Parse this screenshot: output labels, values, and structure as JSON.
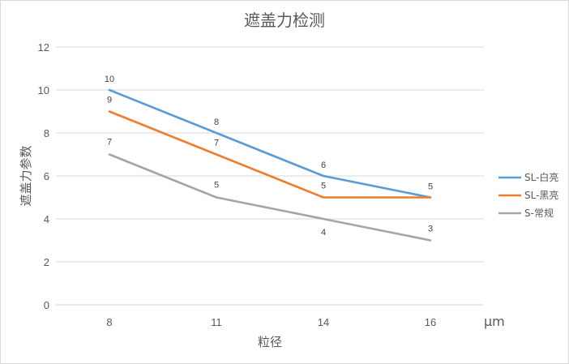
{
  "chart_data": {
    "type": "line",
    "title": "遮盖力检测",
    "xlabel": "粒径",
    "ylabel": "遮盖力参数",
    "x_unit": "μm",
    "categories": [
      "8",
      "11",
      "14",
      "16"
    ],
    "ylim": [
      0,
      12
    ],
    "yticks": [
      "0",
      "2",
      "4",
      "6",
      "8",
      "10",
      "12"
    ],
    "grid": true,
    "legend_position": "right",
    "series": [
      {
        "name": "SL-白亮",
        "color": "#5b9bd5",
        "values": [
          10,
          8,
          6,
          5
        ]
      },
      {
        "name": "SL-黑亮",
        "color": "#ed7d31",
        "values": [
          9,
          7,
          5,
          5
        ]
      },
      {
        "name": "S-常规",
        "color": "#a5a5a5",
        "values": [
          7,
          5,
          4,
          3
        ]
      }
    ]
  }
}
